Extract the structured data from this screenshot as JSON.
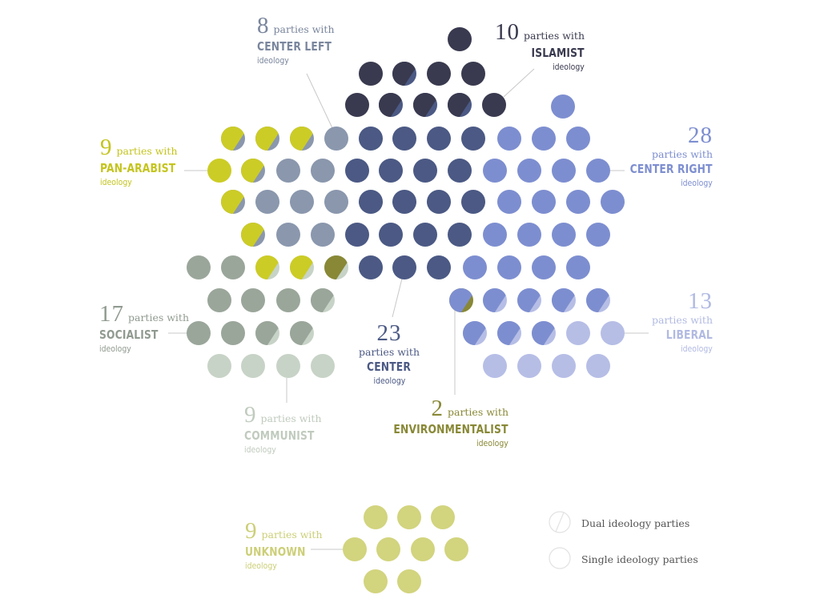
{
  "colors": {
    "islamist": "#393a4f",
    "center": "#4b5984",
    "center_left": "#8a97ad",
    "center_right": "#7d8ed0",
    "liberal": "#b6bee6",
    "pan_arabist": "#cccc26",
    "socialist": "#9aa69a",
    "communist": "#c7d3c6",
    "environmentalist": "#888836",
    "unknown": "#d2d47e"
  },
  "labels": [
    {
      "key": "islamist",
      "count": "10",
      "parties_with": "parties with",
      "name": "ISLAMIST",
      "ideology": "ideology"
    },
    {
      "key": "center_left",
      "count": "8",
      "parties_with": "parties with",
      "name": "CENTER LEFT",
      "ideology": "ideology"
    },
    {
      "key": "center_right",
      "count": "28",
      "parties_with": "parties with",
      "name": "CENTER RIGHT",
      "ideology": "ideology"
    },
    {
      "key": "pan_arabist",
      "count": "9",
      "parties_with": "parties with",
      "name": "PAN-ARABIST",
      "ideology": "ideology"
    },
    {
      "key": "socialist",
      "count": "17",
      "parties_with": "parties with",
      "name": "SOCIALIST",
      "ideology": "ideology"
    },
    {
      "key": "center",
      "count": "23",
      "parties_with": "parties with",
      "name": "CENTER",
      "ideology": "ideology"
    },
    {
      "key": "liberal",
      "count": "13",
      "parties_with": "parties with",
      "name": "LIBERAL",
      "ideology": "ideology"
    },
    {
      "key": "communist",
      "count": "9",
      "parties_with": "parties with",
      "name": "COMMUNIST",
      "ideology": "ideology"
    },
    {
      "key": "environmentalist",
      "count": "2",
      "parties_with": "parties with",
      "name": "ENVIRONMENTALIST",
      "ideology": "ideology"
    },
    {
      "key": "unknown",
      "count": "9",
      "parties_with": "parties with",
      "name": "UNKNOWN",
      "ideology": "ideology"
    }
  ],
  "legend": {
    "dual": "Dual ideology parties",
    "single": "Single ideology parties"
  },
  "chart_data": {
    "type": "dot-matrix",
    "unit": "party",
    "categories": [
      "Islamist",
      "Center Left",
      "Center Right",
      "Pan-Arabist",
      "Socialist",
      "Center",
      "Liberal",
      "Communist",
      "Environmentalist",
      "Unknown"
    ],
    "values": [
      10,
      8,
      28,
      9,
      17,
      23,
      13,
      9,
      2,
      9
    ],
    "dual_ideology_dots": [
      [
        "islamist",
        "center"
      ],
      [
        "islamist",
        "center"
      ],
      [
        "islamist",
        "center"
      ],
      [
        "islamist",
        "center"
      ],
      [
        "pan_arabist",
        "center_left"
      ],
      [
        "pan_arabist",
        "center_left"
      ],
      [
        "pan_arabist",
        "center_left"
      ],
      [
        "pan_arabist",
        "center_left"
      ],
      [
        "pan_arabist",
        "center_left"
      ],
      [
        "pan_arabist",
        "center_left"
      ],
      [
        "pan_arabist",
        "communist"
      ],
      [
        "pan_arabist",
        "communist"
      ],
      [
        "environmentalist",
        "communist"
      ],
      [
        "environmentalist",
        "center_right"
      ],
      [
        "socialist",
        "communist"
      ],
      [
        "socialist",
        "communist"
      ],
      [
        "socialist",
        "communist"
      ],
      [
        "center_right",
        "liberal"
      ],
      [
        "center_right",
        "liberal"
      ],
      [
        "center_right",
        "liberal"
      ],
      [
        "center_right",
        "liberal"
      ],
      [
        "center_right",
        "liberal"
      ],
      [
        "center_right",
        "liberal"
      ]
    ]
  }
}
